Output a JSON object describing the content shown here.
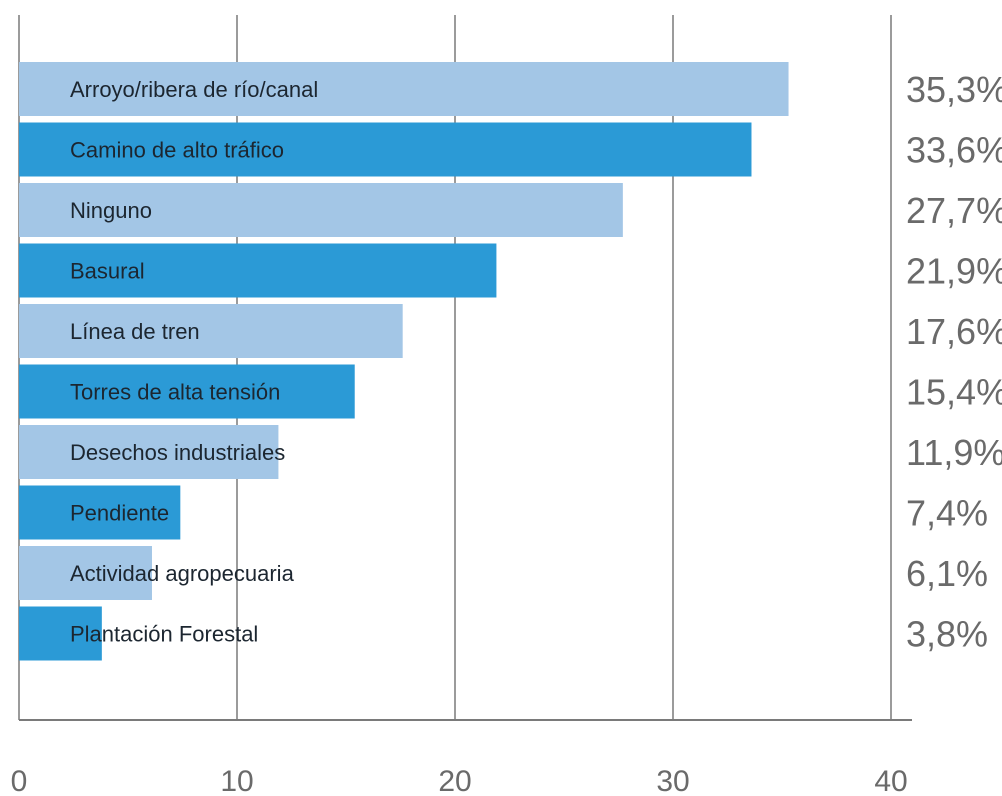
{
  "chart_data": {
    "type": "bar",
    "orientation": "horizontal",
    "title": "",
    "xlabel": "",
    "ylabel": "",
    "categories": [
      "Arroyo/ribera de río/canal",
      "Camino de alto tráfico",
      "Ninguno",
      "Basural",
      "Línea de tren",
      "Torres de alta tensión",
      "Desechos industriales",
      "Pendiente",
      "Actividad agropecuaria",
      "Plantación Forestal"
    ],
    "values": [
      35.3,
      33.6,
      27.7,
      21.9,
      17.6,
      15.4,
      11.9,
      7.4,
      6.1,
      3.8
    ],
    "value_labels": [
      "35,3%",
      "33,6%",
      "27,7%",
      "21,9%",
      "17,6%",
      "15,4%",
      "11,9%",
      "7,4%",
      "6,1%",
      "3,8%"
    ],
    "xlim": [
      0,
      40
    ],
    "x_ticks": [
      0,
      10,
      20,
      30,
      40
    ],
    "x_tick_labels": [
      "0",
      "10",
      "20",
      "30",
      "40"
    ],
    "grid": true,
    "colors": {
      "light_bar": "#a3c6e6",
      "dark_bar": "#2b9ad6",
      "grid": "#7a7a7a"
    }
  }
}
